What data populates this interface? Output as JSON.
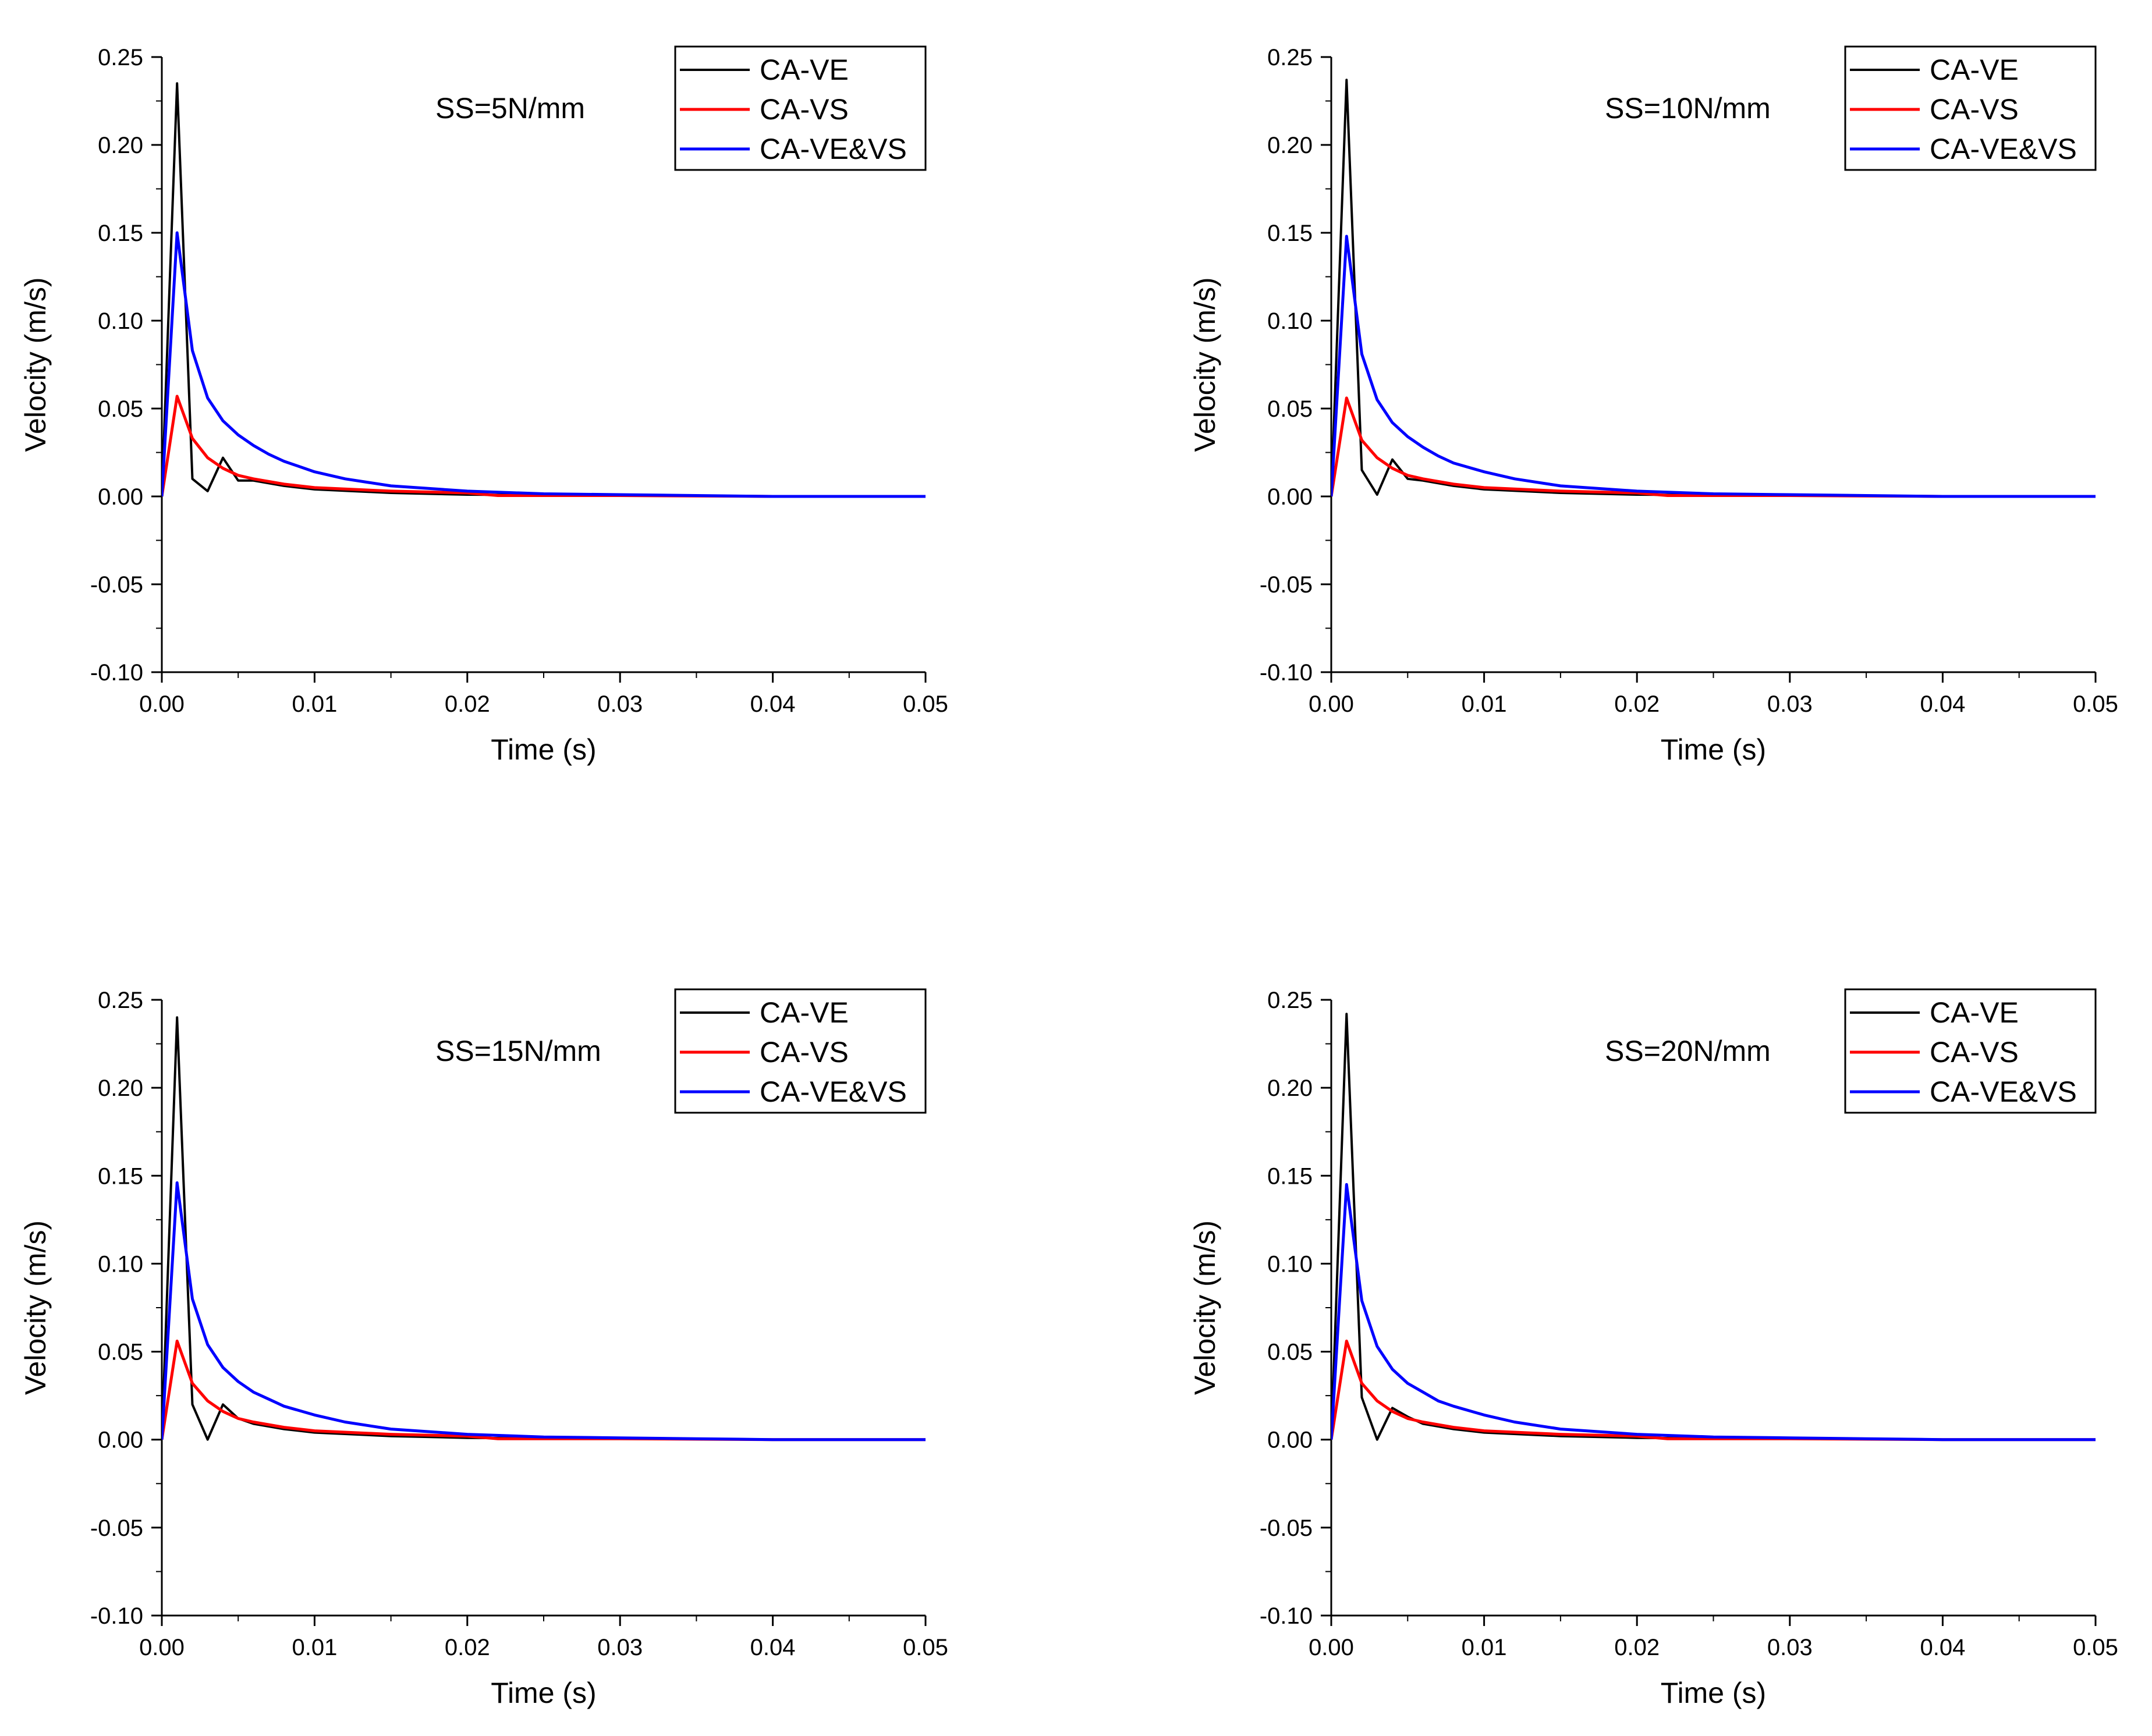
{
  "chart_data": [
    {
      "type": "line",
      "annotation": "SS=5N/mm",
      "xlabel": "Time (s)",
      "ylabel": "Velocity (m/s)",
      "xlim": [
        0,
        0.05
      ],
      "ylim": [
        -0.1,
        0.25
      ],
      "xticks": [
        "0.00",
        "0.01",
        "0.02",
        "0.03",
        "0.04",
        "0.05"
      ],
      "yticks": [
        "0.25",
        "0.20",
        "0.15",
        "0.10",
        "0.05",
        "0.00",
        "-0.05",
        "-0.10"
      ],
      "legend_position": "top-right",
      "series": [
        {
          "name": "CA-VE",
          "color": "#000000",
          "x": [
            0,
            0.001,
            0.002,
            0.003,
            0.004,
            0.005,
            0.006,
            0.008,
            0.01,
            0.015,
            0.02,
            0.03,
            0.04,
            0.05
          ],
          "values": [
            0,
            0.235,
            0.01,
            0.003,
            0.022,
            0.009,
            0.009,
            0.006,
            0.004,
            0.002,
            0.001,
            0.0005,
            0,
            0
          ]
        },
        {
          "name": "CA-VS",
          "color": "#ff0000",
          "x": [
            0,
            0.001,
            0.002,
            0.003,
            0.004,
            0.005,
            0.006,
            0.008,
            0.01,
            0.015,
            0.02,
            0.022,
            0.03,
            0.04,
            0.05
          ],
          "values": [
            0,
            0.057,
            0.033,
            0.022,
            0.016,
            0.012,
            0.01,
            0.007,
            0.005,
            0.003,
            0.002,
            0.0005,
            0.0005,
            0,
            0
          ]
        },
        {
          "name": "CA-VE&VS",
          "color": "#0000ff",
          "x": [
            0,
            0.001,
            0.002,
            0.003,
            0.004,
            0.005,
            0.006,
            0.007,
            0.008,
            0.01,
            0.012,
            0.015,
            0.02,
            0.025,
            0.03,
            0.035,
            0.04,
            0.05
          ],
          "values": [
            0,
            0.15,
            0.083,
            0.056,
            0.043,
            0.035,
            0.029,
            0.024,
            0.02,
            0.014,
            0.01,
            0.006,
            0.003,
            0.0015,
            0.001,
            0.0005,
            0,
            0
          ]
        }
      ]
    },
    {
      "type": "line",
      "annotation": "SS=10N/mm",
      "xlabel": "Time (s)",
      "ylabel": "Velocity (m/s)",
      "xlim": [
        0,
        0.05
      ],
      "ylim": [
        -0.1,
        0.25
      ],
      "xticks": [
        "0.00",
        "0.01",
        "0.02",
        "0.03",
        "0.04",
        "0.05"
      ],
      "yticks": [
        "0.25",
        "0.20",
        "0.15",
        "0.10",
        "0.05",
        "0.00",
        "-0.05",
        "-0.10"
      ],
      "legend_position": "top-right",
      "series": [
        {
          "name": "CA-VE",
          "color": "#000000",
          "x": [
            0,
            0.001,
            0.002,
            0.003,
            0.004,
            0.005,
            0.006,
            0.008,
            0.01,
            0.015,
            0.02,
            0.03,
            0.04,
            0.05
          ],
          "values": [
            0,
            0.237,
            0.015,
            0.001,
            0.021,
            0.01,
            0.009,
            0.006,
            0.004,
            0.002,
            0.001,
            0.0005,
            0,
            0
          ]
        },
        {
          "name": "CA-VS",
          "color": "#ff0000",
          "x": [
            0,
            0.001,
            0.002,
            0.003,
            0.004,
            0.005,
            0.006,
            0.008,
            0.01,
            0.015,
            0.02,
            0.022,
            0.03,
            0.04,
            0.05
          ],
          "values": [
            0,
            0.056,
            0.032,
            0.022,
            0.016,
            0.012,
            0.01,
            0.007,
            0.005,
            0.003,
            0.002,
            0.0005,
            0.0005,
            0,
            0
          ]
        },
        {
          "name": "CA-VE&VS",
          "color": "#0000ff",
          "x": [
            0,
            0.001,
            0.002,
            0.003,
            0.004,
            0.005,
            0.006,
            0.007,
            0.008,
            0.01,
            0.012,
            0.015,
            0.02,
            0.025,
            0.03,
            0.035,
            0.04,
            0.05
          ],
          "values": [
            0,
            0.148,
            0.081,
            0.055,
            0.042,
            0.034,
            0.028,
            0.023,
            0.019,
            0.014,
            0.01,
            0.006,
            0.003,
            0.0015,
            0.001,
            0.0005,
            0,
            0
          ]
        }
      ]
    },
    {
      "type": "line",
      "annotation": "SS=15N/mm",
      "xlabel": "Time (s)",
      "ylabel": "Velocity (m/s)",
      "xlim": [
        0,
        0.05
      ],
      "ylim": [
        -0.1,
        0.25
      ],
      "xticks": [
        "0.00",
        "0.01",
        "0.02",
        "0.03",
        "0.04",
        "0.05"
      ],
      "yticks": [
        "0.25",
        "0.20",
        "0.15",
        "0.10",
        "0.05",
        "0.00",
        "-0.05",
        "-0.10"
      ],
      "legend_position": "top-right",
      "series": [
        {
          "name": "CA-VE",
          "color": "#000000",
          "x": [
            0,
            0.001,
            0.002,
            0.003,
            0.004,
            0.005,
            0.006,
            0.008,
            0.01,
            0.015,
            0.02,
            0.03,
            0.04,
            0.05
          ],
          "values": [
            0,
            0.24,
            0.02,
            0.0,
            0.02,
            0.012,
            0.009,
            0.006,
            0.004,
            0.002,
            0.001,
            0.0005,
            0,
            0
          ]
        },
        {
          "name": "CA-VS",
          "color": "#ff0000",
          "x": [
            0,
            0.001,
            0.002,
            0.003,
            0.004,
            0.005,
            0.006,
            0.008,
            0.01,
            0.015,
            0.02,
            0.022,
            0.03,
            0.04,
            0.05
          ],
          "values": [
            0,
            0.056,
            0.032,
            0.022,
            0.016,
            0.012,
            0.01,
            0.007,
            0.005,
            0.003,
            0.002,
            0.0005,
            0.0005,
            0,
            0
          ]
        },
        {
          "name": "CA-VE&VS",
          "color": "#0000ff",
          "x": [
            0,
            0.001,
            0.002,
            0.003,
            0.004,
            0.005,
            0.006,
            0.007,
            0.008,
            0.01,
            0.012,
            0.015,
            0.02,
            0.025,
            0.03,
            0.035,
            0.04,
            0.05
          ],
          "values": [
            0,
            0.146,
            0.08,
            0.054,
            0.041,
            0.033,
            0.027,
            0.023,
            0.019,
            0.014,
            0.01,
            0.006,
            0.003,
            0.0015,
            0.001,
            0.0005,
            0,
            0
          ]
        }
      ]
    },
    {
      "type": "line",
      "annotation": "SS=20N/mm",
      "xlabel": "Time (s)",
      "ylabel": "Velocity (m/s)",
      "xlim": [
        0,
        0.05
      ],
      "ylim": [
        -0.1,
        0.25
      ],
      "xticks": [
        "0.00",
        "0.01",
        "0.02",
        "0.03",
        "0.04",
        "0.05"
      ],
      "yticks": [
        "0.25",
        "0.20",
        "0.15",
        "0.10",
        "0.05",
        "0.00",
        "-0.05",
        "-0.10"
      ],
      "legend_position": "top-right",
      "series": [
        {
          "name": "CA-VE",
          "color": "#000000",
          "x": [
            0,
            0.001,
            0.002,
            0.003,
            0.004,
            0.005,
            0.006,
            0.008,
            0.01,
            0.015,
            0.02,
            0.03,
            0.04,
            0.05
          ],
          "values": [
            0,
            0.242,
            0.024,
            0.0,
            0.018,
            0.013,
            0.009,
            0.006,
            0.004,
            0.002,
            0.001,
            0.0005,
            0,
            0
          ]
        },
        {
          "name": "CA-VS",
          "color": "#ff0000",
          "x": [
            0,
            0.001,
            0.002,
            0.003,
            0.004,
            0.005,
            0.006,
            0.008,
            0.01,
            0.015,
            0.02,
            0.022,
            0.03,
            0.04,
            0.05
          ],
          "values": [
            0,
            0.056,
            0.032,
            0.022,
            0.016,
            0.012,
            0.01,
            0.007,
            0.005,
            0.003,
            0.002,
            0.0005,
            0.0005,
            0,
            0
          ]
        },
        {
          "name": "CA-VE&VS",
          "color": "#0000ff",
          "x": [
            0,
            0.001,
            0.002,
            0.003,
            0.004,
            0.005,
            0.006,
            0.007,
            0.008,
            0.01,
            0.012,
            0.015,
            0.02,
            0.025,
            0.03,
            0.035,
            0.04,
            0.05
          ],
          "values": [
            0,
            0.145,
            0.079,
            0.053,
            0.04,
            0.032,
            0.027,
            0.022,
            0.019,
            0.014,
            0.01,
            0.006,
            0.003,
            0.0015,
            0.001,
            0.0005,
            0,
            0
          ]
        }
      ]
    }
  ]
}
